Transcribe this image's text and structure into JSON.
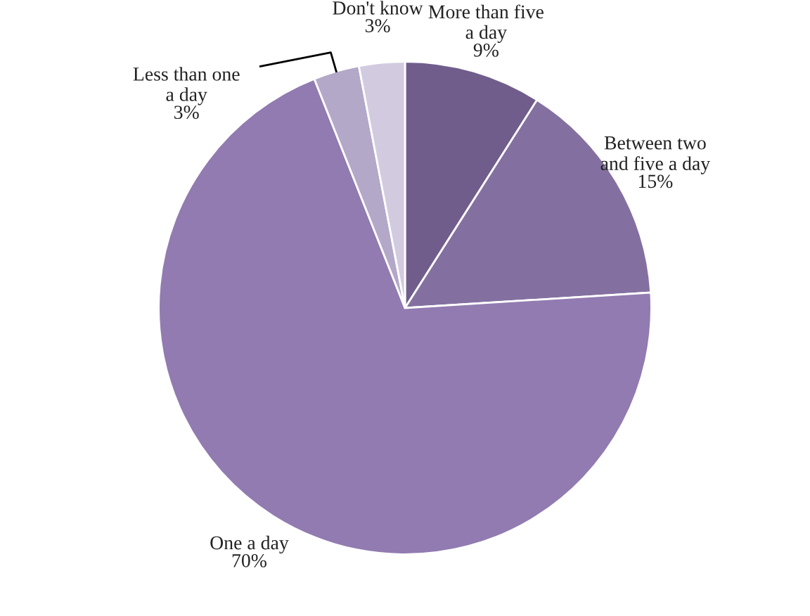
{
  "chart_data": {
    "type": "pie",
    "categories": [
      "More than five a day",
      "Between two and five a day",
      "One a day",
      "Less than one a day",
      "Don't know"
    ],
    "values": [
      9,
      15,
      70,
      3,
      3
    ],
    "colors": [
      "#715d8c",
      "#8470a0",
      "#917bb0",
      "#b4a8c9",
      "#d2cbe0"
    ],
    "value_labels": [
      "9%",
      "15%",
      "70%",
      "3%",
      "3%"
    ],
    "legend": false
  }
}
